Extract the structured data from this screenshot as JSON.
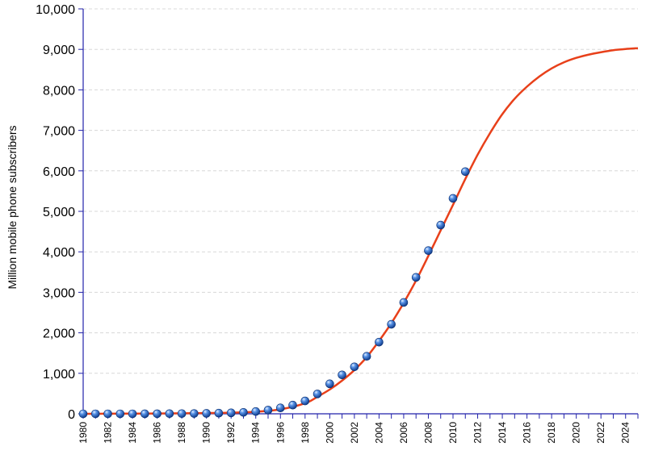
{
  "chart_data": {
    "type": "line",
    "title": "",
    "xlabel": "",
    "ylabel": "Million mobile phone subscribers",
    "xlim": [
      1980,
      2025
    ],
    "ylim": [
      0,
      10000
    ],
    "y_ticks": [
      0,
      1000,
      2000,
      3000,
      4000,
      5000,
      6000,
      7000,
      8000,
      9000,
      10000
    ],
    "y_tick_labels": [
      "0",
      "1,000",
      "2,000",
      "3,000",
      "4,000",
      "5,000",
      "6,000",
      "7,000",
      "8,000",
      "9,000",
      "10,000"
    ],
    "x_ticks": [
      1980,
      1982,
      1984,
      1986,
      1988,
      1990,
      1992,
      1994,
      1996,
      1998,
      2000,
      2002,
      2004,
      2006,
      2008,
      2010,
      2012,
      2014,
      2016,
      2018,
      2020,
      2022,
      2024
    ],
    "x_tick_labels": [
      "1980",
      "1982",
      "1984",
      "1986",
      "1988",
      "1990",
      "1992",
      "1994",
      "1996",
      "1998",
      "2000",
      "2002",
      "2004",
      "2006",
      "2008",
      "2010",
      "2012",
      "2014",
      "2016",
      "2018",
      "2020",
      "2022",
      "2024"
    ],
    "grid": "horizontal dashed",
    "legend": "none",
    "colors": {
      "curve": "#e8401a",
      "point": "#2a6fd6",
      "axis": "#2222aa",
      "grid": "#d8d8d8"
    },
    "series": [
      {
        "kind": "scatter",
        "x": [
          1980,
          1981,
          1982,
          1983,
          1984,
          1985,
          1986,
          1987,
          1988,
          1989,
          1990,
          1991,
          1992,
          1993,
          1994,
          1995,
          1996,
          1997,
          1998,
          1999,
          2000,
          2001,
          2002,
          2003,
          2004,
          2005,
          2006,
          2007,
          2008,
          2009,
          2010,
          2011
        ],
        "values": [
          0,
          0,
          0,
          0,
          0,
          1,
          2,
          4,
          5,
          7,
          11,
          16,
          23,
          34,
          56,
          91,
          145,
          215,
          318,
          490,
          740,
          960,
          1160,
          1420,
          1770,
          2210,
          2750,
          3370,
          4030,
          4660,
          5320,
          5980
        ]
      },
      {
        "kind": "line",
        "x": [
          1980,
          1982,
          1984,
          1986,
          1988,
          1990,
          1992,
          1994,
          1996,
          1998,
          1999,
          2000,
          2001,
          2002,
          2003,
          2004,
          2005,
          2006,
          2007,
          2008,
          2009,
          2010,
          2011,
          2012,
          2013,
          2014,
          2015,
          2016,
          2017,
          2018,
          2019,
          2020,
          2021,
          2022,
          2023,
          2024,
          2025
        ],
        "values": [
          0,
          2,
          5,
          8,
          12,
          18,
          28,
          50,
          110,
          260,
          420,
          600,
          820,
          1080,
          1400,
          1800,
          2240,
          2740,
          3290,
          3900,
          4530,
          5160,
          5800,
          6400,
          6930,
          7400,
          7780,
          8080,
          8330,
          8530,
          8680,
          8790,
          8870,
          8930,
          8980,
          9010,
          9030
        ]
      }
    ]
  }
}
